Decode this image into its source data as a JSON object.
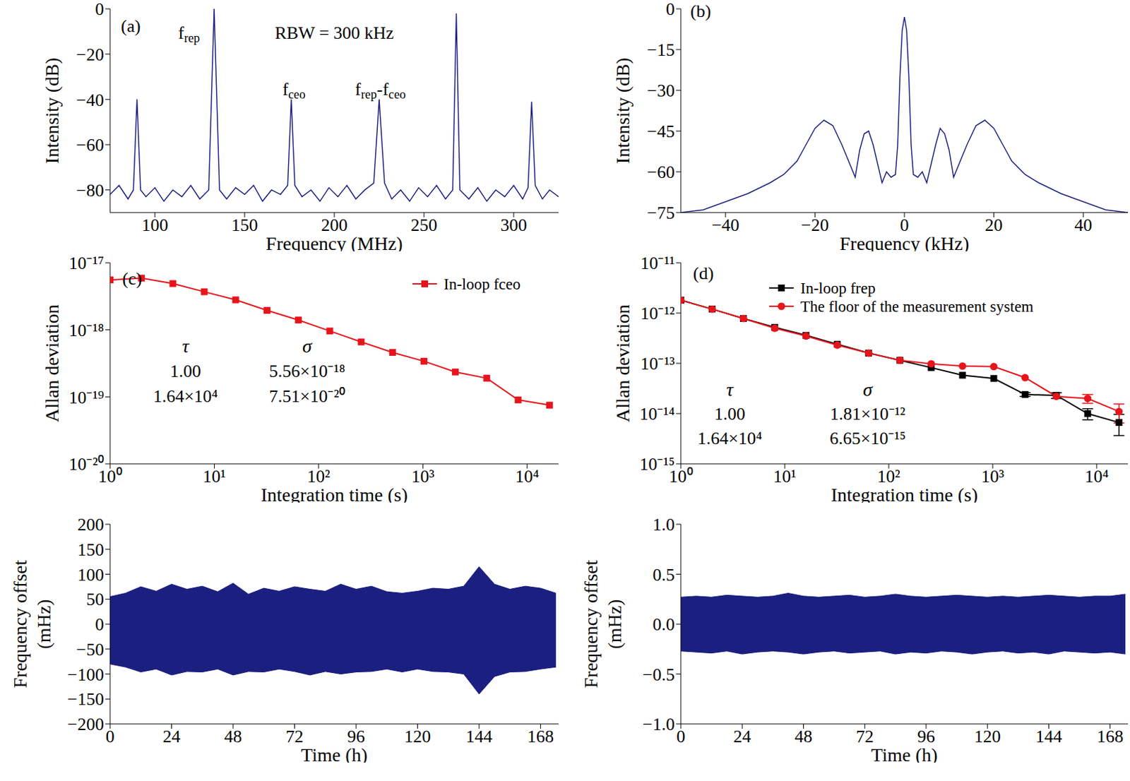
{
  "chart_data": [
    {
      "label": "(a)",
      "type": "line",
      "xlabel": "Frequency (MHz)",
      "ylabel": [
        "Intensity (dB)"
      ],
      "x": [
        75,
        80,
        85,
        88,
        90,
        92,
        95,
        100,
        105,
        110,
        115,
        120,
        125,
        130,
        133,
        136,
        140,
        145,
        150,
        155,
        160,
        165,
        170,
        174,
        176,
        178,
        182,
        187,
        192,
        197,
        202,
        207,
        212,
        217,
        222,
        225,
        228,
        232,
        237,
        242,
        247,
        252,
        257,
        262,
        266,
        268,
        270,
        275,
        280,
        285,
        290,
        295,
        300,
        305,
        308,
        310,
        312,
        316,
        320,
        325
      ],
      "series": [
        {
          "color": "#1a1f80",
          "values": [
            -82,
            -78,
            -84,
            -80,
            -40,
            -80,
            -83,
            -79,
            -85,
            -80,
            -83,
            -78,
            -84,
            -80,
            0,
            -80,
            -84,
            -79,
            -82,
            -78,
            -85,
            -80,
            -82,
            -78,
            -40,
            -78,
            -83,
            -80,
            -85,
            -79,
            -83,
            -78,
            -84,
            -80,
            -77,
            -40,
            -77,
            -84,
            -80,
            -85,
            -79,
            -83,
            -78,
            -84,
            -80,
            -2,
            -80,
            -84,
            -79,
            -85,
            -80,
            -83,
            -78,
            -84,
            -79,
            -41,
            -78,
            -84,
            -80,
            -83
          ]
        }
      ],
      "xlim": [
        75,
        325
      ],
      "xticks": [
        100,
        150,
        200,
        250,
        300
      ],
      "ylim": [
        -90,
        0
      ],
      "yticks": [
        {
          "value": -80,
          "label": "−80"
        },
        {
          "value": -60,
          "label": "−60"
        },
        {
          "value": -40,
          "label": "−40"
        },
        {
          "value": -20,
          "label": "−20"
        },
        0
      ],
      "annotations": [
        {
          "x": 119,
          "y": -10.6,
          "parts": [
            {
              "text": "f"
            },
            {
              "text": "rep",
              "sub": true
            }
          ]
        },
        {
          "x": 200,
          "y": -10.6,
          "parts": [
            {
              "text": "RBW = 300 kHz"
            }
          ]
        },
        {
          "x": 177.5,
          "y": -35.4,
          "parts": [
            {
              "text": "f"
            },
            {
              "text": "ceo",
              "sub": true
            }
          ]
        },
        {
          "x": 225.7,
          "y": -35.4,
          "parts": [
            {
              "text": "f"
            },
            {
              "text": "rep",
              "sub": true
            },
            {
              "text": "-f"
            },
            {
              "text": "ceo",
              "sub": true
            }
          ]
        }
      ]
    },
    {
      "label": "(b)",
      "type": "line",
      "xlabel": "Frequency (kHz)",
      "ylabel": [
        "Intensity (dB)"
      ],
      "x": [
        -50,
        -45,
        -40,
        -35,
        -30,
        -27,
        -24,
        -22,
        -20,
        -18,
        -16,
        -14,
        -12,
        -11,
        -10,
        -9,
        -8,
        -7,
        -6,
        -5,
        -4,
        -3,
        -2,
        -1.5,
        -1,
        -0.5,
        0,
        0.5,
        1,
        1.5,
        2,
        3,
        4,
        5,
        6,
        7,
        8,
        9,
        10,
        11,
        12,
        14,
        16,
        18,
        20,
        22,
        24,
        27,
        30,
        35,
        40,
        45,
        50
      ],
      "series": [
        {
          "color": "#1a1f80",
          "values": [
            -75,
            -74,
            -71,
            -68,
            -64,
            -61,
            -56,
            -50,
            -44,
            -41,
            -43,
            -50,
            -58,
            -62,
            -52,
            -46,
            -45,
            -50,
            -57,
            -64,
            -60,
            -62,
            -61,
            -50,
            -25,
            -8,
            -3,
            -8,
            -25,
            -50,
            -61,
            -62,
            -60,
            -64,
            -57,
            -50,
            -44,
            -46,
            -52,
            -62,
            -58,
            -50,
            -43,
            -41,
            -44,
            -50,
            -56,
            -61,
            -64,
            -68,
            -71,
            -74,
            -75
          ]
        }
      ],
      "xlim": [
        -50,
        50
      ],
      "xticks": [
        {
          "value": -40,
          "label": "−40"
        },
        {
          "value": -20,
          "label": "−20"
        },
        0,
        20,
        40
      ],
      "ylim": [
        -75,
        0
      ],
      "yticks": [
        {
          "value": -75,
          "label": "−75"
        },
        {
          "value": -60,
          "label": "−60"
        },
        {
          "value": -45,
          "label": "−45"
        },
        {
          "value": -30,
          "label": "−30"
        },
        {
          "value": -15,
          "label": "−15"
        },
        0
      ]
    },
    {
      "label": "(c)",
      "type": "line",
      "log": true,
      "xlabel": "Integration time (s)",
      "ylabel": [
        "Allan deviation"
      ],
      "x": [
        1,
        2,
        4,
        8,
        16,
        32,
        64,
        128,
        256,
        512,
        1024,
        2048,
        4096,
        8192,
        16384
      ],
      "series": [
        {
          "name": "In-loop fceo",
          "color": "#e8141c",
          "marker": "square",
          "values": [
            5.56e-18,
            5.9e-18,
            4.9e-18,
            3.7e-18,
            2.8e-18,
            1.95e-18,
            1.4e-18,
            9.6e-19,
            6.6e-19,
            4.6e-19,
            3.4e-19,
            2.35e-19,
            1.9e-19,
            9e-20,
            7.51e-20
          ]
        }
      ],
      "xlim": [
        1,
        20000
      ],
      "xticks": [
        {
          "value": 1,
          "label": "10⁰"
        },
        {
          "value": 10,
          "label": "10¹"
        },
        {
          "value": 100,
          "label": "10²"
        },
        {
          "value": 1000,
          "label": "10³"
        },
        {
          "value": 10000,
          "label": "10⁴"
        }
      ],
      "ylim": [
        1e-20,
        1e-17
      ],
      "yticks": [
        {
          "value": 1e-20,
          "label": "10⁻²⁰"
        },
        {
          "value": 1e-19,
          "label": "10⁻¹⁹"
        },
        {
          "value": 1e-18,
          "label": "10⁻¹⁸"
        },
        {
          "value": 1e-17,
          "label": "10⁻¹⁷"
        }
      ],
      "legend": "upper right",
      "table": {
        "headers": [
          "τ",
          "σ"
        ],
        "rows": [
          [
            "1.00",
            "5.56×10⁻¹⁸"
          ],
          [
            "1.64×10⁴",
            "7.51×10⁻²⁰"
          ]
        ]
      }
    },
    {
      "label": "(d)",
      "type": "line",
      "log": true,
      "xlabel": "Integration time (s)",
      "ylabel": [
        "Allan deviation"
      ],
      "x": [
        1,
        2,
        4,
        8,
        16,
        32,
        64,
        128,
        256,
        512,
        1024,
        2048,
        4096,
        8192,
        16384
      ],
      "series": [
        {
          "name": "In-loop frep",
          "color": "#000000",
          "marker": "square",
          "values": [
            1.81e-12,
            1.2e-12,
            7.8e-13,
            5.2e-13,
            3.6e-13,
            2.4e-13,
            1.6e-13,
            1.15e-13,
            8.2e-14,
            5.8e-14,
            5e-14,
            2.4e-14,
            2.3e-14,
            1e-14,
            6.65e-15
          ],
          "errors": [
            0,
            0,
            0,
            0,
            0,
            0,
            0,
            0,
            0,
            0,
            0,
            2e-15,
            3e-15,
            2.5e-15,
            3e-15
          ]
        },
        {
          "name": "The floor of the measurement system",
          "color": "#e8141c",
          "marker": "circle",
          "values": [
            1.81e-12,
            1.2e-12,
            7.8e-13,
            5e-13,
            3.5e-13,
            2.3e-13,
            1.6e-13,
            1.15e-13,
            9.8e-14,
            8.8e-14,
            8.6e-14,
            5.2e-14,
            2.2e-14,
            2e-14,
            1.1e-14
          ],
          "errors": [
            0,
            0,
            0,
            0,
            0,
            0,
            0,
            0,
            0,
            0,
            0,
            0,
            0,
            4e-15,
            4.5e-15
          ]
        }
      ],
      "xlim": [
        1,
        20000
      ],
      "xticks": [
        {
          "value": 1,
          "label": "10⁰"
        },
        {
          "value": 10,
          "label": "10¹"
        },
        {
          "value": 100,
          "label": "10²"
        },
        {
          "value": 1000,
          "label": "10³"
        },
        {
          "value": 10000,
          "label": "10⁴"
        }
      ],
      "ylim": [
        1e-15,
        1e-11
      ],
      "yticks": [
        {
          "value": 1e-15,
          "label": "10⁻¹⁵"
        },
        {
          "value": 1e-14,
          "label": "10⁻¹⁴"
        },
        {
          "value": 1e-13,
          "label": "10⁻¹³"
        },
        {
          "value": 1e-12,
          "label": "10⁻¹²"
        },
        {
          "value": 1e-11,
          "label": "10⁻¹¹"
        }
      ],
      "legend": "upper right",
      "table": {
        "headers": [
          "τ",
          "σ"
        ],
        "rows": [
          [
            "1.00",
            "1.81×10⁻¹²"
          ],
          [
            "1.64×10⁴",
            "6.65×10⁻¹⁵"
          ]
        ]
      }
    },
    {
      "type": "range_area",
      "xlabel": "Time (h)",
      "ylabel": [
        "Frequency offset",
        "(mHz)"
      ],
      "x": [
        0,
        6,
        12,
        18,
        24,
        30,
        36,
        42,
        48,
        54,
        60,
        66,
        72,
        78,
        84,
        90,
        96,
        102,
        108,
        114,
        120,
        126,
        132,
        138,
        144,
        150,
        156,
        162,
        168,
        174
      ],
      "series": [
        {
          "color": "#1a1f80",
          "lower": [
            -80,
            -86,
            -96,
            -90,
            -102,
            -95,
            -96,
            -90,
            -102,
            -95,
            -96,
            -90,
            -95,
            -102,
            -95,
            -100,
            -96,
            -95,
            -90,
            -96,
            -90,
            -95,
            -96,
            -100,
            -140,
            -105,
            -96,
            -95,
            -90,
            -86
          ],
          "upper": [
            55,
            62,
            75,
            66,
            80,
            70,
            76,
            65,
            82,
            60,
            72,
            66,
            75,
            70,
            66,
            80,
            70,
            76,
            65,
            62,
            66,
            72,
            70,
            76,
            115,
            80,
            70,
            76,
            72,
            62
          ]
        }
      ],
      "xlim": [
        0,
        175
      ],
      "xticks": [
        0,
        24,
        48,
        72,
        96,
        120,
        144,
        168
      ],
      "ylim": [
        -200,
        200
      ],
      "yticks": [
        {
          "value": -200,
          "label": "−200"
        },
        {
          "value": -150,
          "label": "−150"
        },
        {
          "value": -100,
          "label": "−100"
        },
        {
          "value": -50,
          "label": "−50"
        },
        0,
        50,
        100,
        150,
        200
      ]
    },
    {
      "type": "range_area",
      "xlabel": "Time (h)",
      "ylabel": [
        "Frequency offset",
        "(mHz)"
      ],
      "x": [
        0,
        6,
        12,
        18,
        24,
        30,
        36,
        42,
        48,
        54,
        60,
        66,
        72,
        78,
        84,
        90,
        96,
        102,
        108,
        114,
        120,
        126,
        132,
        138,
        144,
        150,
        156,
        162,
        168,
        174
      ],
      "series": [
        {
          "color": "#1a1f80",
          "lower": [
            -0.27,
            -0.28,
            -0.29,
            -0.27,
            -0.3,
            -0.28,
            -0.27,
            -0.28,
            -0.3,
            -0.28,
            -0.27,
            -0.29,
            -0.28,
            -0.27,
            -0.3,
            -0.28,
            -0.29,
            -0.27,
            -0.28,
            -0.3,
            -0.28,
            -0.27,
            -0.29,
            -0.28,
            -0.3,
            -0.27,
            -0.28,
            -0.29,
            -0.28,
            -0.3
          ],
          "upper": [
            0.27,
            0.28,
            0.27,
            0.29,
            0.28,
            0.27,
            0.28,
            0.31,
            0.28,
            0.27,
            0.28,
            0.29,
            0.27,
            0.28,
            0.3,
            0.28,
            0.27,
            0.28,
            0.29,
            0.28,
            0.27,
            0.28,
            0.27,
            0.28,
            0.29,
            0.28,
            0.27,
            0.28,
            0.28,
            0.3
          ]
        }
      ],
      "xlim": [
        0,
        175
      ],
      "xticks": [
        0,
        24,
        48,
        72,
        96,
        120,
        144,
        168
      ],
      "ylim": [
        -1,
        1
      ],
      "yticks": [
        {
          "value": -1,
          "label": "−1.0"
        },
        {
          "value": -0.5,
          "label": "−0.5"
        },
        {
          "value": 0,
          "label": "0.0"
        },
        {
          "value": 0.5,
          "label": "0.5"
        },
        {
          "value": 1,
          "label": "1.0"
        }
      ]
    }
  ]
}
